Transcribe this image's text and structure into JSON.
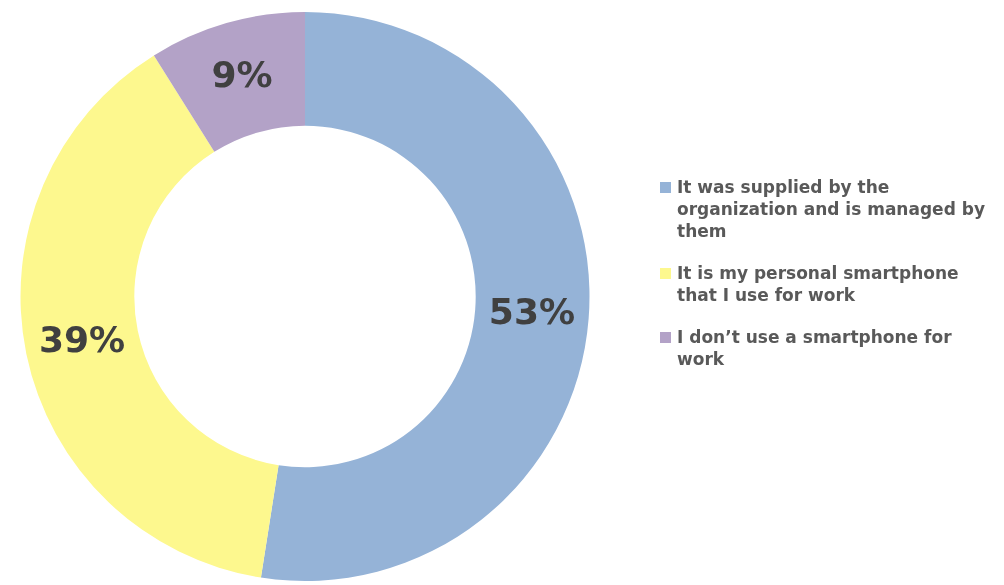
{
  "chart_data": {
    "type": "donut",
    "categories": [
      "It was supplied by the organization and is managed by them",
      "It is my personal smartphone that I use for work",
      "I don’t use a smartphone for work"
    ],
    "values": [
      53,
      39,
      9
    ],
    "colors": [
      "#95b3d7",
      "#fdf88e",
      "#b3a2c7"
    ],
    "value_labels": [
      "53%",
      "39%",
      "9%"
    ],
    "legend": "right"
  }
}
